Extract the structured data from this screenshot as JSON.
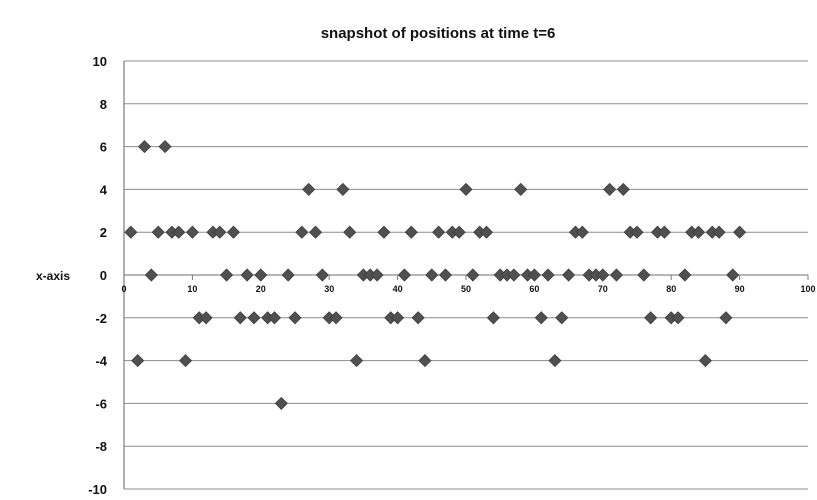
{
  "chart_data": {
    "type": "scatter",
    "title": "snapshot of positions at time t=6",
    "xlabel": "x-axis",
    "ylabel": "",
    "xlim": [
      0,
      100
    ],
    "ylim": [
      -10,
      10
    ],
    "x_ticks": [
      0,
      10,
      20,
      30,
      40,
      50,
      60,
      70,
      80,
      90,
      100
    ],
    "y_ticks": [
      10,
      8,
      6,
      4,
      2,
      0,
      -2,
      -4,
      -6,
      -8,
      -10
    ],
    "grid": "horizontal",
    "marker": "diamond",
    "colors": {
      "marker": "#505050",
      "grid": "#8c8c8c",
      "axis": "#7a7a7a",
      "text": "#111111"
    },
    "series": [
      {
        "points": [
          [
            1,
            2
          ],
          [
            2,
            -4
          ],
          [
            3,
            6
          ],
          [
            4,
            0
          ],
          [
            5,
            2
          ],
          [
            6,
            6
          ],
          [
            7,
            2
          ],
          [
            8,
            2
          ],
          [
            9,
            -4
          ],
          [
            10,
            2
          ],
          [
            11,
            -2
          ],
          [
            12,
            -2
          ],
          [
            13,
            2
          ],
          [
            14,
            2
          ],
          [
            15,
            0
          ],
          [
            16,
            2
          ],
          [
            17,
            -2
          ],
          [
            18,
            0
          ],
          [
            19,
            -2
          ],
          [
            20,
            0
          ],
          [
            21,
            -2
          ],
          [
            22,
            -2
          ],
          [
            23,
            -6
          ],
          [
            24,
            0
          ],
          [
            25,
            -2
          ],
          [
            26,
            2
          ],
          [
            27,
            4
          ],
          [
            28,
            2
          ],
          [
            29,
            0
          ],
          [
            30,
            -2
          ],
          [
            31,
            -2
          ],
          [
            32,
            4
          ],
          [
            33,
            2
          ],
          [
            34,
            -4
          ],
          [
            35,
            0
          ],
          [
            36,
            0
          ],
          [
            37,
            0
          ],
          [
            38,
            2
          ],
          [
            39,
            -2
          ],
          [
            40,
            -2
          ],
          [
            41,
            0
          ],
          [
            42,
            2
          ],
          [
            43,
            -2
          ],
          [
            44,
            -4
          ],
          [
            45,
            0
          ],
          [
            46,
            2
          ],
          [
            47,
            0
          ],
          [
            48,
            2
          ],
          [
            49,
            2
          ],
          [
            50,
            4
          ],
          [
            51,
            0
          ],
          [
            52,
            2
          ],
          [
            53,
            2
          ],
          [
            54,
            -2
          ],
          [
            55,
            0
          ],
          [
            56,
            0
          ],
          [
            57,
            0
          ],
          [
            58,
            4
          ],
          [
            59,
            0
          ],
          [
            60,
            0
          ],
          [
            61,
            -2
          ],
          [
            62,
            0
          ],
          [
            63,
            -4
          ],
          [
            64,
            -2
          ],
          [
            65,
            0
          ],
          [
            66,
            2
          ],
          [
            67,
            2
          ],
          [
            68,
            0
          ],
          [
            69,
            0
          ],
          [
            70,
            0
          ],
          [
            71,
            4
          ],
          [
            72,
            0
          ],
          [
            73,
            4
          ],
          [
            74,
            2
          ],
          [
            75,
            2
          ],
          [
            76,
            0
          ],
          [
            77,
            -2
          ],
          [
            78,
            2
          ],
          [
            79,
            2
          ],
          [
            80,
            -2
          ],
          [
            81,
            -2
          ],
          [
            82,
            0
          ],
          [
            83,
            2
          ],
          [
            84,
            2
          ],
          [
            85,
            -4
          ],
          [
            86,
            2
          ],
          [
            87,
            2
          ],
          [
            88,
            -2
          ],
          [
            89,
            0
          ],
          [
            90,
            2
          ]
        ]
      }
    ]
  }
}
